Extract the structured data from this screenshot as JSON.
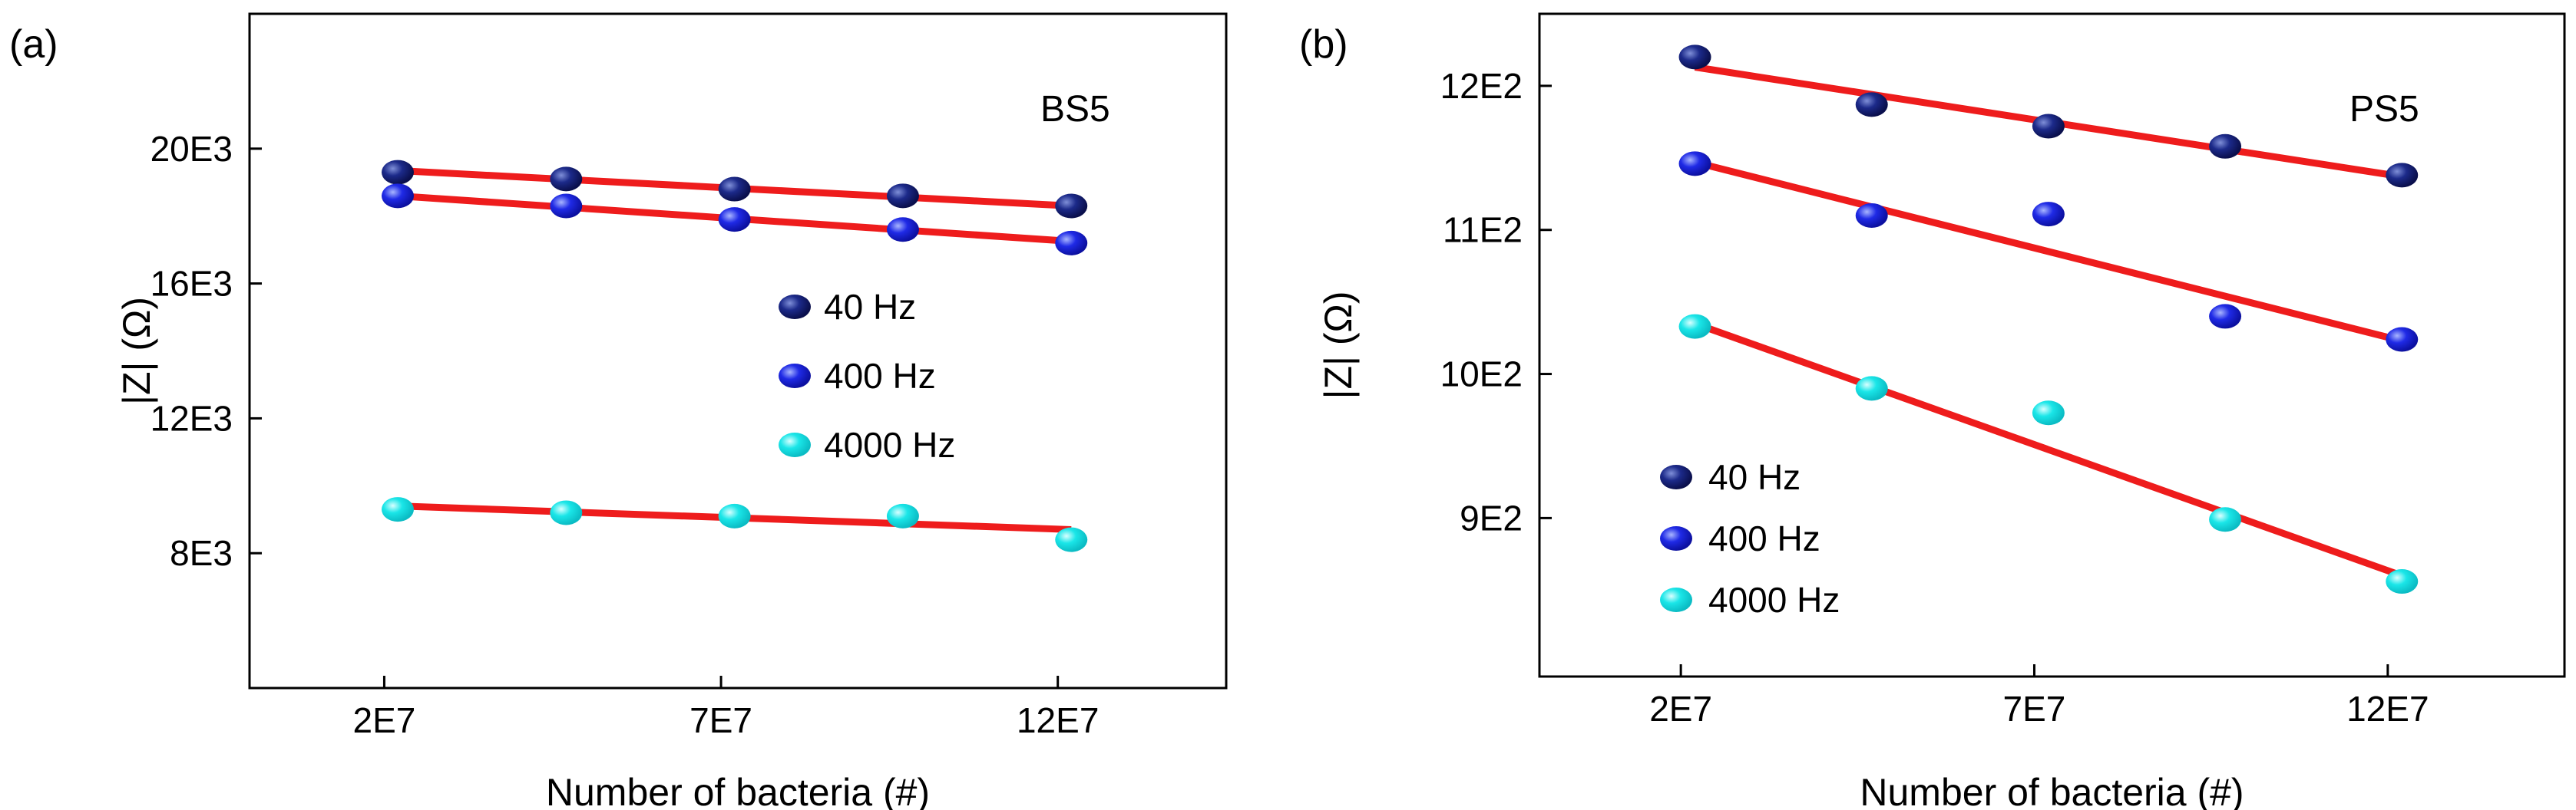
{
  "chart_data": [
    {
      "type": "scatter",
      "panel_label": "(a)",
      "annotation": "BS5",
      "title": "",
      "xlabel": "Number of bacteria (#)",
      "ylabel": "|Z| (Ω)",
      "xlim": [
        0,
        14.5
      ],
      "ylim": [
        4000,
        24000
      ],
      "xticks": [
        2,
        7,
        12
      ],
      "xtick_labels": [
        "2E7",
        "7E7",
        "12E7"
      ],
      "yticks": [
        8000,
        12000,
        16000,
        20000
      ],
      "ytick_labels": [
        "8E3",
        "12E3",
        "16E3",
        "20E3"
      ],
      "legend_position": "center-right",
      "x_units": "E7 bacteria",
      "series": [
        {
          "name": "40 Hz",
          "color": "#0f1670",
          "x": [
            2.2,
            4.7,
            7.2,
            9.7,
            12.2
          ],
          "values": [
            19300,
            19100,
            18800,
            18600,
            18300
          ],
          "fit": {
            "x": [
              2.2,
              12.2
            ],
            "y": [
              19350,
              18300
            ]
          }
        },
        {
          "name": "400 Hz",
          "color": "#1515d8",
          "x": [
            2.2,
            4.7,
            7.2,
            9.7,
            12.2
          ],
          "values": [
            18600,
            18300,
            17900,
            17600,
            17200
          ],
          "fit": {
            "x": [
              2.2,
              12.2
            ],
            "y": [
              18600,
              17250
            ]
          }
        },
        {
          "name": "4000 Hz",
          "color": "#19e4e4",
          "x": [
            2.2,
            4.7,
            7.2,
            9.7,
            12.2
          ],
          "values": [
            9300,
            9200,
            9100,
            9100,
            8400
          ],
          "fit": {
            "x": [
              2.2,
              12.2
            ],
            "y": [
              9400,
              8700
            ]
          }
        }
      ]
    },
    {
      "type": "scatter",
      "panel_label": "(b)",
      "annotation": "PS5",
      "title": "",
      "xlabel": "Number of bacteria (#)",
      "ylabel": "|Z| (Ω)",
      "xlim": [
        0,
        14.5
      ],
      "ylim": [
        790,
        1250
      ],
      "xticks": [
        2,
        7,
        12
      ],
      "xtick_labels": [
        "2E7",
        "7E7",
        "12E7"
      ],
      "yticks": [
        900,
        1000,
        1100,
        1200
      ],
      "ytick_labels": [
        "9E2",
        "10E2",
        "11E2",
        "12E2"
      ],
      "legend_position": "bottom-left",
      "x_units": "E7 bacteria",
      "series": [
        {
          "name": "40 Hz",
          "color": "#0f1670",
          "x": [
            2.2,
            4.7,
            7.2,
            9.7,
            12.2
          ],
          "values": [
            1220,
            1187,
            1172,
            1158,
            1138
          ],
          "fit": {
            "x": [
              2.2,
              12.2
            ],
            "y": [
              1213,
              1137
            ]
          }
        },
        {
          "name": "400 Hz",
          "color": "#1515d8",
          "x": [
            2.2,
            4.7,
            7.2,
            9.7,
            12.2
          ],
          "values": [
            1146,
            1110,
            1111,
            1040,
            1024
          ],
          "fit": {
            "x": [
              2.2,
              12.2
            ],
            "y": [
              1147,
              1023
            ]
          }
        },
        {
          "name": "4000 Hz",
          "color": "#19e4e4",
          "x": [
            2.2,
            4.7,
            7.2,
            9.7,
            12.2
          ],
          "values": [
            1033,
            990,
            973,
            899,
            856
          ],
          "fit": {
            "x": [
              2.2,
              12.2
            ],
            "y": [
              1035,
              860
            ]
          }
        }
      ]
    }
  ]
}
